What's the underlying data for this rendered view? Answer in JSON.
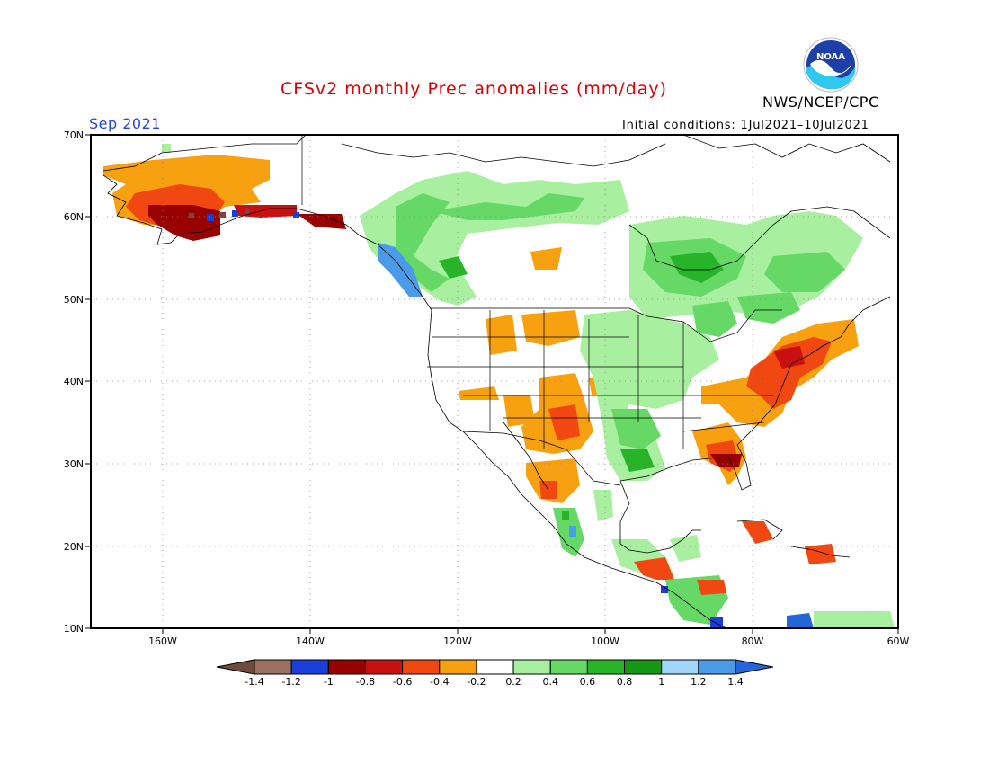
{
  "header": {
    "title": "CFSv2 monthly Prec anomalies (mm/day)",
    "month": "Sep 2021",
    "initial_conditions": "Initial conditions: 1Jul2021–10Jul2021",
    "agency": "NWS/NCEP/CPC",
    "logo_text": "NOAA"
  },
  "colors": {
    "title": "#dd0000",
    "month": "#2244dd",
    "land_outline": "#000000",
    "graticule": "#888888"
  },
  "map": {
    "lat_labels": [
      "70N",
      "60N",
      "50N",
      "40N",
      "30N",
      "20N",
      "10N"
    ],
    "lon_labels": [
      "160W",
      "140W",
      "120W",
      "100W",
      "80W",
      "60W"
    ]
  },
  "legend": {
    "labels": [
      "-1.4",
      "-1.2",
      "-1",
      "-0.8",
      "-0.6",
      "-0.4",
      "-0.2",
      "0.2",
      "0.4",
      "0.6",
      "0.8",
      "1",
      "1.2",
      "1.4"
    ],
    "colors": [
      "#6e4b3c",
      "#9a7060",
      "#1a3fd8",
      "#990000",
      "#c81010",
      "#f04810",
      "#f7a010",
      "#ffffff",
      "#a8f0a0",
      "#66d866",
      "#28b428",
      "#159615",
      "#a0d4f8",
      "#4a9be8",
      "#2266d8"
    ]
  }
}
